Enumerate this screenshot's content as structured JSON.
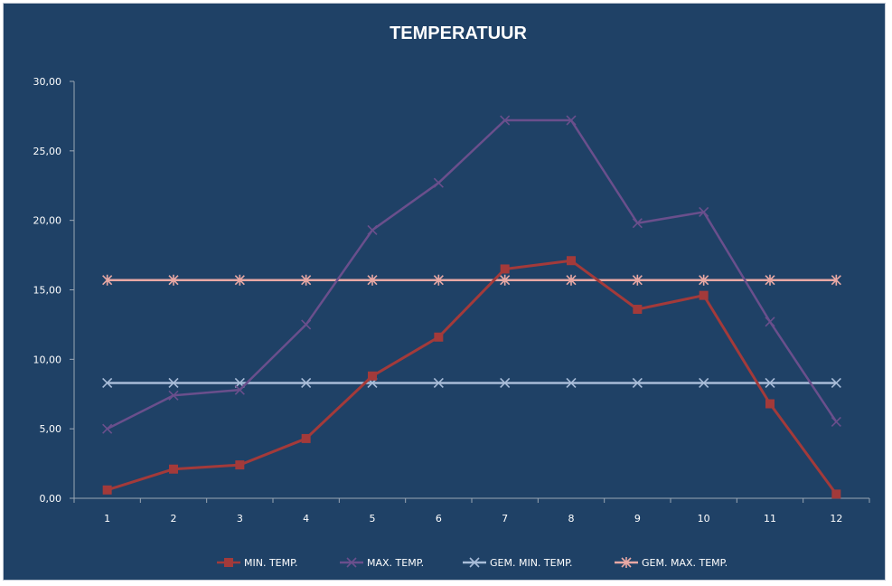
{
  "chart_data": {
    "type": "line",
    "title": "TEMPERATUUR",
    "xlabel": "",
    "ylabel": "",
    "categories": [
      "1",
      "2",
      "3",
      "4",
      "5",
      "6",
      "7",
      "8",
      "9",
      "10",
      "11",
      "12"
    ],
    "y_ticks": [
      "0,00",
      "5,00",
      "10,00",
      "15,00",
      "20,00",
      "25,00",
      "30,00"
    ],
    "ylim": [
      0,
      30
    ],
    "grid": false,
    "legend_position": "bottom",
    "series": [
      {
        "name": "MIN. TEMP.",
        "color": "#a33a3a",
        "marker": "square",
        "values": [
          0.6,
          2.1,
          2.4,
          4.3,
          8.8,
          11.6,
          16.5,
          17.1,
          13.6,
          14.6,
          6.8,
          0.3
        ]
      },
      {
        "name": "MAX. TEMP.",
        "color": "#6a4f8c",
        "marker": "x",
        "values": [
          5.0,
          7.4,
          7.8,
          12.5,
          19.3,
          22.7,
          27.2,
          27.2,
          19.8,
          20.6,
          12.7,
          5.5
        ]
      },
      {
        "name": "GEM. MIN. TEMP.",
        "color": "#a8bcd8",
        "marker": "x",
        "values": [
          8.3,
          8.3,
          8.3,
          8.3,
          8.3,
          8.3,
          8.3,
          8.3,
          8.3,
          8.3,
          8.3,
          8.3
        ]
      },
      {
        "name": "GEM. MAX. TEMP.",
        "color": "#e8a8a4",
        "marker": "star",
        "values": [
          15.7,
          15.7,
          15.7,
          15.7,
          15.7,
          15.7,
          15.7,
          15.7,
          15.7,
          15.7,
          15.7,
          15.7
        ]
      }
    ]
  }
}
